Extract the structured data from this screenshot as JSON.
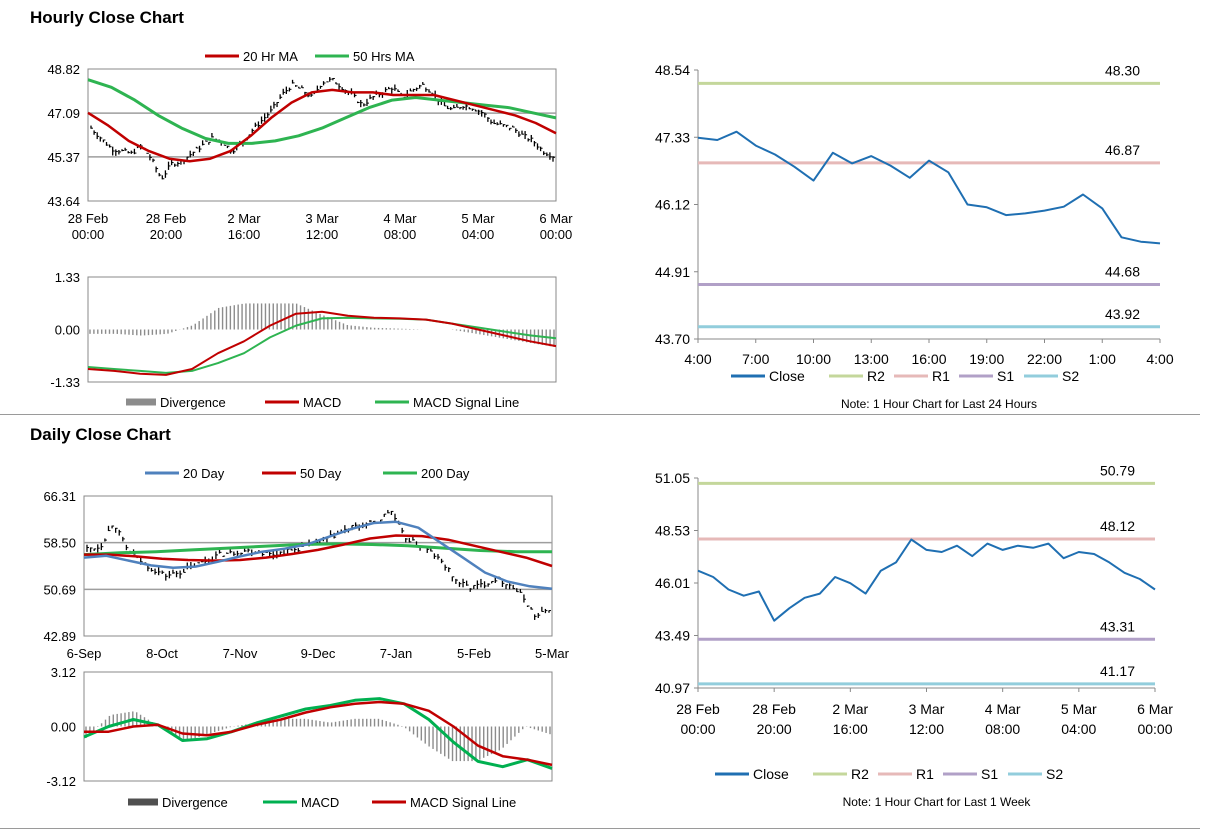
{
  "sections": {
    "hourly_title": "Hourly Close Chart",
    "daily_title": "Daily Close Chart"
  },
  "chart_data": [
    {
      "id": "hourly-price",
      "type": "line",
      "title": "Hourly Close Chart",
      "x_ticks": [
        "28 Feb|00:00",
        "28 Feb|20:00",
        "2 Mar|16:00",
        "3 Mar|12:00",
        "4 Mar|08:00",
        "5 Mar|04:00",
        "6 Mar|00:00"
      ],
      "y_ticks": [
        "48.82",
        "47.09",
        "45.37",
        "43.64"
      ],
      "ylim": [
        43.64,
        48.82
      ],
      "legend": [
        "20 Hr MA",
        "50 Hrs MA"
      ],
      "series": [
        {
          "name": "Price",
          "values": [
            46.5,
            46.1,
            45.7,
            45.6,
            45.5,
            45.8,
            45.3,
            44.5,
            45.1,
            45.2,
            45.5,
            45.8,
            46.1,
            46.0,
            45.6,
            45.9,
            46.4,
            46.8,
            47.2,
            47.8,
            48.2,
            48.0,
            47.7,
            48.3,
            48.4,
            48.1,
            47.8,
            47.4,
            47.7,
            47.9,
            48.1,
            47.7,
            48.0,
            48.2,
            47.9,
            47.4,
            47.2,
            47.4,
            47.3,
            47.1,
            46.7,
            46.6,
            46.5,
            46.2,
            46.0,
            45.6,
            45.4
          ]
        },
        {
          "name": "20 Hr MA",
          "values": [
            47.1,
            46.6,
            46.0,
            45.6,
            45.3,
            45.2,
            45.3,
            45.6,
            46.2,
            46.9,
            47.5,
            47.9,
            48.0,
            47.9,
            47.9,
            47.8,
            47.8,
            47.8,
            47.6,
            47.4,
            47.2,
            47.0,
            46.7,
            46.3
          ]
        },
        {
          "name": "50 Hrs MA",
          "values": [
            48.4,
            48.1,
            47.6,
            47.0,
            46.5,
            46.1,
            45.9,
            45.9,
            46.0,
            46.2,
            46.5,
            46.9,
            47.3,
            47.6,
            47.7,
            47.6,
            47.5,
            47.4,
            47.3,
            47.1,
            46.9
          ]
        }
      ]
    },
    {
      "id": "hourly-macd",
      "type": "line",
      "y_ticks": [
        "1.33",
        "0.00",
        "-1.33"
      ],
      "ylim": [
        -1.33,
        1.33
      ],
      "legend": [
        "Divergence",
        "MACD",
        "MACD Signal Line"
      ],
      "series": [
        {
          "name": "MACD",
          "values": [
            -1.0,
            -1.05,
            -1.12,
            -1.15,
            -1.0,
            -0.6,
            -0.3,
            0.1,
            0.4,
            0.45,
            0.35,
            0.3,
            0.28,
            0.25,
            0.15,
            0.0,
            -0.15,
            -0.3,
            -0.42
          ]
        },
        {
          "name": "MACD Signal Line",
          "values": [
            -0.95,
            -1.0,
            -1.05,
            -1.1,
            -1.05,
            -0.85,
            -0.6,
            -0.2,
            0.1,
            0.28,
            0.3,
            0.28,
            0.27,
            0.25,
            0.15,
            0.05,
            -0.05,
            -0.15,
            -0.22
          ]
        }
      ]
    },
    {
      "id": "hourly-24h",
      "type": "line",
      "note": "Note: 1 Hour Chart for Last 24 Hours",
      "x_ticks": [
        "4:00",
        "7:00",
        "10:00",
        "13:00",
        "16:00",
        "19:00",
        "22:00",
        "1:00",
        "4:00"
      ],
      "y_ticks": [
        "48.54",
        "47.33",
        "46.12",
        "44.91",
        "43.70"
      ],
      "ylim": [
        43.7,
        48.54
      ],
      "levels": [
        {
          "name": "R2",
          "value": 48.3,
          "label": "48.30",
          "color": "#c4d79b"
        },
        {
          "name": "R1",
          "value": 46.87,
          "label": "46.87",
          "color": "#e6b9b8"
        },
        {
          "name": "S1",
          "value": 44.68,
          "label": "44.68",
          "color": "#b1a0c7"
        },
        {
          "name": "S2",
          "value": 43.92,
          "label": "43.92",
          "color": "#92cddc"
        }
      ],
      "legend": [
        "Close",
        "R2",
        "R1",
        "S1",
        "S2"
      ],
      "series": [
        {
          "name": "Close",
          "values": [
            47.32,
            47.28,
            47.43,
            47.18,
            47.02,
            46.8,
            46.55,
            47.05,
            46.86,
            46.99,
            46.82,
            46.6,
            46.91,
            46.7,
            46.12,
            46.07,
            45.93,
            45.96,
            46.01,
            46.08,
            46.3,
            46.05,
            45.53,
            45.45,
            45.42
          ]
        }
      ]
    },
    {
      "id": "daily-price",
      "type": "line",
      "title": "Daily Close Chart",
      "x_ticks": [
        "6-Sep",
        "8-Oct",
        "7-Nov",
        "9-Dec",
        "7-Jan",
        "5-Feb",
        "5-Mar"
      ],
      "y_ticks": [
        "66.31",
        "58.50",
        "50.69",
        "42.89"
      ],
      "ylim": [
        42.89,
        66.31
      ],
      "legend": [
        "20 Day",
        "50 Day",
        "200 Day"
      ],
      "series": [
        {
          "name": "Price",
          "values": [
            57.5,
            57.8,
            62.0,
            57.5,
            55.5,
            54.0,
            53.0,
            53.5,
            54.5,
            55.5,
            56.5,
            56.8,
            57.2,
            57.0,
            56.5,
            57.0,
            57.5,
            58.2,
            59.0,
            60.0,
            61.0,
            61.5,
            62.0,
            64.0,
            59.5,
            58.2,
            57.0,
            55.0,
            52.0,
            51.0,
            51.5,
            52.5,
            51.5,
            49.5,
            46.0,
            47.5
          ]
        },
        {
          "name": "20 Day",
          "values": [
            56.0,
            56.3,
            55.5,
            54.7,
            54.3,
            54.5,
            55.3,
            56.2,
            57.0,
            57.5,
            58.2,
            59.5,
            60.8,
            61.8,
            62.0,
            61.0,
            58.5,
            56.0,
            53.5,
            52.0,
            51.2,
            50.8
          ]
        },
        {
          "name": "50 Day",
          "values": [
            56.5,
            56.5,
            56.2,
            55.8,
            55.6,
            55.5,
            55.6,
            56.0,
            56.6,
            57.3,
            58.2,
            59.2,
            59.7,
            59.6,
            59.0,
            58.0,
            57.0,
            56.0,
            54.6
          ]
        },
        {
          "name": "200 Day",
          "values": [
            56.5,
            56.8,
            57.0,
            57.3,
            57.6,
            57.9,
            58.2,
            58.3,
            58.2,
            58.0,
            57.6,
            57.2,
            57.0,
            57.0
          ]
        }
      ]
    },
    {
      "id": "daily-macd",
      "type": "line",
      "y_ticks": [
        "3.12",
        "0.00",
        "-3.12"
      ],
      "ylim": [
        -3.12,
        3.12
      ],
      "legend": [
        "Divergence",
        "MACD",
        "MACD Signal Line"
      ],
      "series": [
        {
          "name": "MACD",
          "values": [
            -0.6,
            0.0,
            0.4,
            0.1,
            -0.8,
            -0.7,
            -0.3,
            0.2,
            0.6,
            1.0,
            1.2,
            1.5,
            1.6,
            1.3,
            0.4,
            -0.9,
            -2.0,
            -2.3,
            -1.9,
            -2.4
          ]
        },
        {
          "name": "MACD Signal Line",
          "values": [
            -0.3,
            -0.3,
            0.0,
            0.1,
            -0.4,
            -0.5,
            -0.3,
            0.1,
            0.4,
            0.8,
            1.1,
            1.3,
            1.4,
            1.3,
            0.9,
            0.0,
            -1.1,
            -1.7,
            -1.9,
            -2.2
          ]
        }
      ]
    },
    {
      "id": "daily-week",
      "type": "line",
      "note": "Note: 1 Hour Chart for Last 1 Week",
      "x_ticks": [
        "28 Feb|00:00",
        "28 Feb|20:00",
        "2 Mar|16:00",
        "3 Mar|12:00",
        "4 Mar|08:00",
        "5 Mar|04:00",
        "6 Mar|00:00"
      ],
      "y_ticks": [
        "51.05",
        "48.53",
        "46.01",
        "43.49",
        "40.97"
      ],
      "ylim": [
        40.97,
        51.05
      ],
      "levels": [
        {
          "name": "R2",
          "value": 50.79,
          "label": "50.79",
          "color": "#c4d79b"
        },
        {
          "name": "R1",
          "value": 48.12,
          "label": "48.12",
          "color": "#e6b9b8"
        },
        {
          "name": "S1",
          "value": 43.31,
          "label": "43.31",
          "color": "#b1a0c7"
        },
        {
          "name": "S2",
          "value": 41.17,
          "label": "41.17",
          "color": "#92cddc"
        }
      ],
      "legend": [
        "Close",
        "R2",
        "R1",
        "S1",
        "S2"
      ],
      "series": [
        {
          "name": "Close",
          "values": [
            46.6,
            46.3,
            45.7,
            45.4,
            45.6,
            44.2,
            44.8,
            45.3,
            45.5,
            46.3,
            46.0,
            45.5,
            46.6,
            47.0,
            48.1,
            47.6,
            47.5,
            47.8,
            47.3,
            47.9,
            47.6,
            47.8,
            47.7,
            47.9,
            47.2,
            47.5,
            47.4,
            47.0,
            46.5,
            46.2,
            45.7
          ]
        }
      ]
    }
  ]
}
